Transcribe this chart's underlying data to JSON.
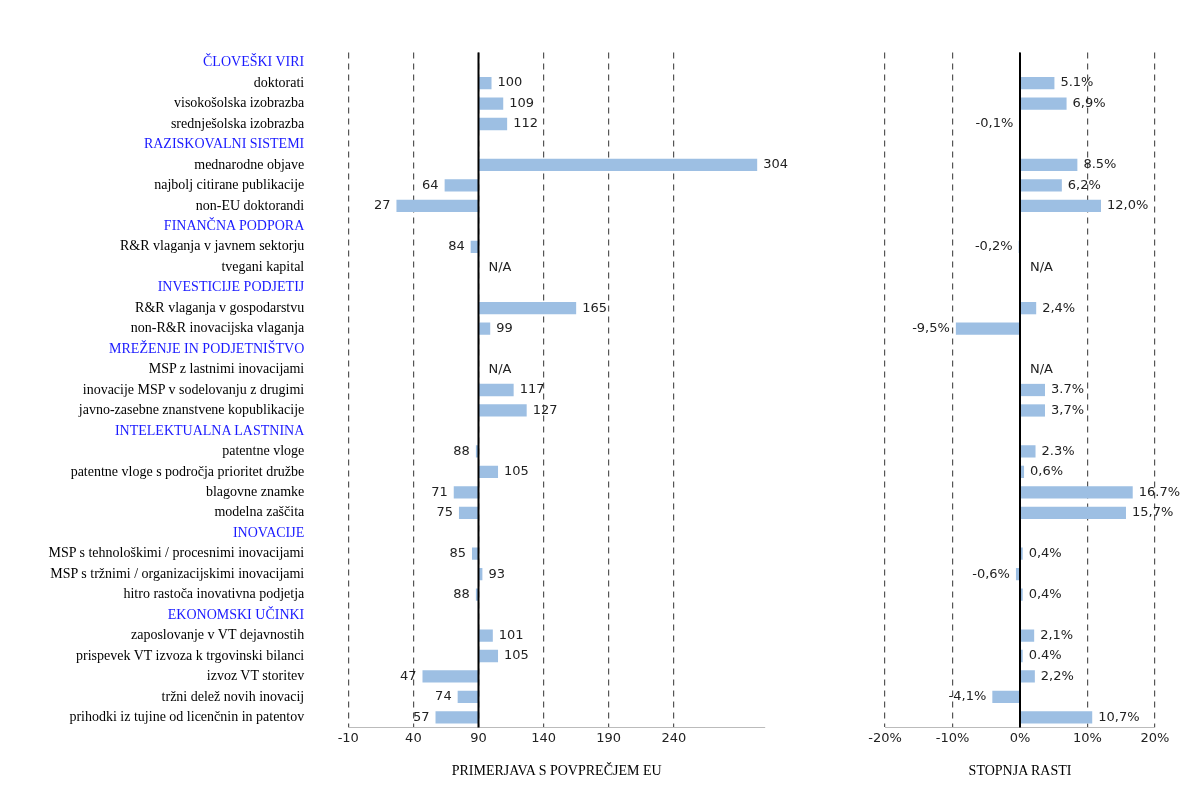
{
  "chart_data": [
    {
      "type": "bar",
      "orientation": "horizontal",
      "xlabel": "PRIMERJAVA S POVPREČJEM EU",
      "categories": [
        "ČLOVEŠKI VIRI",
        "doktorati",
        "visokošolska izobrazba",
        "srednješolska izobrazba",
        "RAZISKOVALNI SISTEMI",
        "mednarodne objave",
        "najbolj citirane publikacije",
        "non-EU doktorandi",
        "FINANČNA PODPORA",
        "R&R vlaganja v javnem sektorju",
        "tvegani kapital",
        "INVESTICIJE PODJETIJ",
        "R&R vlaganja v gospodarstvu",
        "non-R&R inovacijska vlaganja",
        "MREŽENJE IN PODJETNIŠTVO",
        "MSP z lastnimi inovacijami",
        "inovacije MSP v sodelovanju z drugimi",
        "javno-zasebne znanstvene kopublikacije",
        "INTELEKTUALNA LASTNINA",
        "patentne vloge",
        "patentne vloge s področja prioritet družbe",
        "blagovne znamke",
        "modelna zaščita",
        "INOVACIJE",
        "MSP s tehnološkimi / procesnimi inovacijami",
        "MSP s tržnimi / organizacijskimi inovacijami",
        "hitro rastoča inovativna podjetja",
        "EKONOMSKI UČINKI",
        "zaposlovanje v VT dejavnostih",
        "prispevek VT izvoza k trgovinski bilanci",
        "izvoz VT storitev",
        "tržni delež novih inovacij",
        "prihodki iz tujine od licenčnin in patentov"
      ],
      "base": [
        null,
        90,
        90,
        90,
        null,
        90,
        90,
        90,
        null,
        90,
        null,
        null,
        90,
        90,
        null,
        null,
        90,
        90,
        null,
        90,
        90,
        90,
        90,
        null,
        90,
        90,
        90,
        null,
        90,
        90,
        90,
        90,
        90
      ],
      "values": [
        null,
        10,
        19,
        22,
        null,
        214,
        -26,
        -63,
        null,
        -6,
        null,
        null,
        75,
        9,
        null,
        null,
        27,
        37,
        null,
        -2,
        15,
        -19,
        -15,
        null,
        -5,
        3,
        -2,
        null,
        11,
        15,
        -43,
        -16,
        -33
      ],
      "value_labels": [
        null,
        "100",
        "109",
        "112",
        null,
        "304",
        "64",
        "27",
        null,
        "84",
        "N/A",
        null,
        "165",
        "99",
        null,
        "N/A",
        "117",
        "127",
        null,
        "88",
        "105",
        "71",
        "75",
        null,
        "85",
        "93",
        "88",
        null,
        "101",
        "105",
        "47",
        "74",
        "57"
      ],
      "color": "#9dbfe3",
      "xlim": [
        -10,
        310
      ],
      "xticks": [
        -10,
        40,
        90,
        140,
        190,
        240
      ],
      "grid": "x",
      "legend": false,
      "ref_lines": [
        {
          "axis": "x",
          "value": 90
        }
      ]
    },
    {
      "type": "bar",
      "orientation": "horizontal",
      "xlabel": "STOPNJA RASTI",
      "tick_labels": "x",
      "categories": [
        null,
        null,
        null,
        null,
        null,
        null,
        null,
        null,
        null,
        null,
        null,
        null,
        null,
        null,
        null,
        null,
        null,
        null,
        null,
        null,
        null,
        null,
        null,
        null,
        null,
        null,
        null,
        null,
        null,
        null,
        null,
        null,
        null
      ],
      "values": [
        null,
        5.1,
        6.9,
        -0.1,
        null,
        8.5,
        6.2,
        12.0,
        null,
        -0.2,
        null,
        null,
        2.4,
        -9.5,
        null,
        null,
        3.7,
        3.7,
        null,
        2.3,
        0.6,
        16.7,
        15.7,
        null,
        0.4,
        -0.6,
        0.4,
        null,
        2.1,
        0.4,
        2.2,
        -4.1,
        10.7
      ],
      "value_labels": [
        null,
        "5.1%",
        "6,9%",
        "-0,1%",
        null,
        "8.5%",
        "6,2%",
        "12,0%",
        null,
        "-0,2%",
        "N/A",
        null,
        "2,4%",
        "-9,5%",
        null,
        "N/A",
        "3.7%",
        "3,7%",
        null,
        "2.3%",
        "0,6%",
        "16.7%",
        "15,7%",
        null,
        "0,4%",
        "-0,6%",
        "0,4%",
        null,
        "2,1%",
        "0.4%",
        "2,2%",
        "-4,1%",
        "10,7%"
      ],
      "color": "#9dbfe3",
      "ref_lines": [
        {
          "axis": "x",
          "value": 0
        }
      ],
      "xlim": [
        -20,
        20
      ],
      "xticks": [
        {
          "value": -20,
          "label": "-20%"
        },
        {
          "value": -10,
          "label": "-10%"
        },
        {
          "value": 0,
          "label": "0%"
        },
        {
          "value": 10,
          "label": "10%"
        },
        {
          "value": 20,
          "label": "20%"
        }
      ],
      "grid": "x",
      "legend": false
    }
  ]
}
